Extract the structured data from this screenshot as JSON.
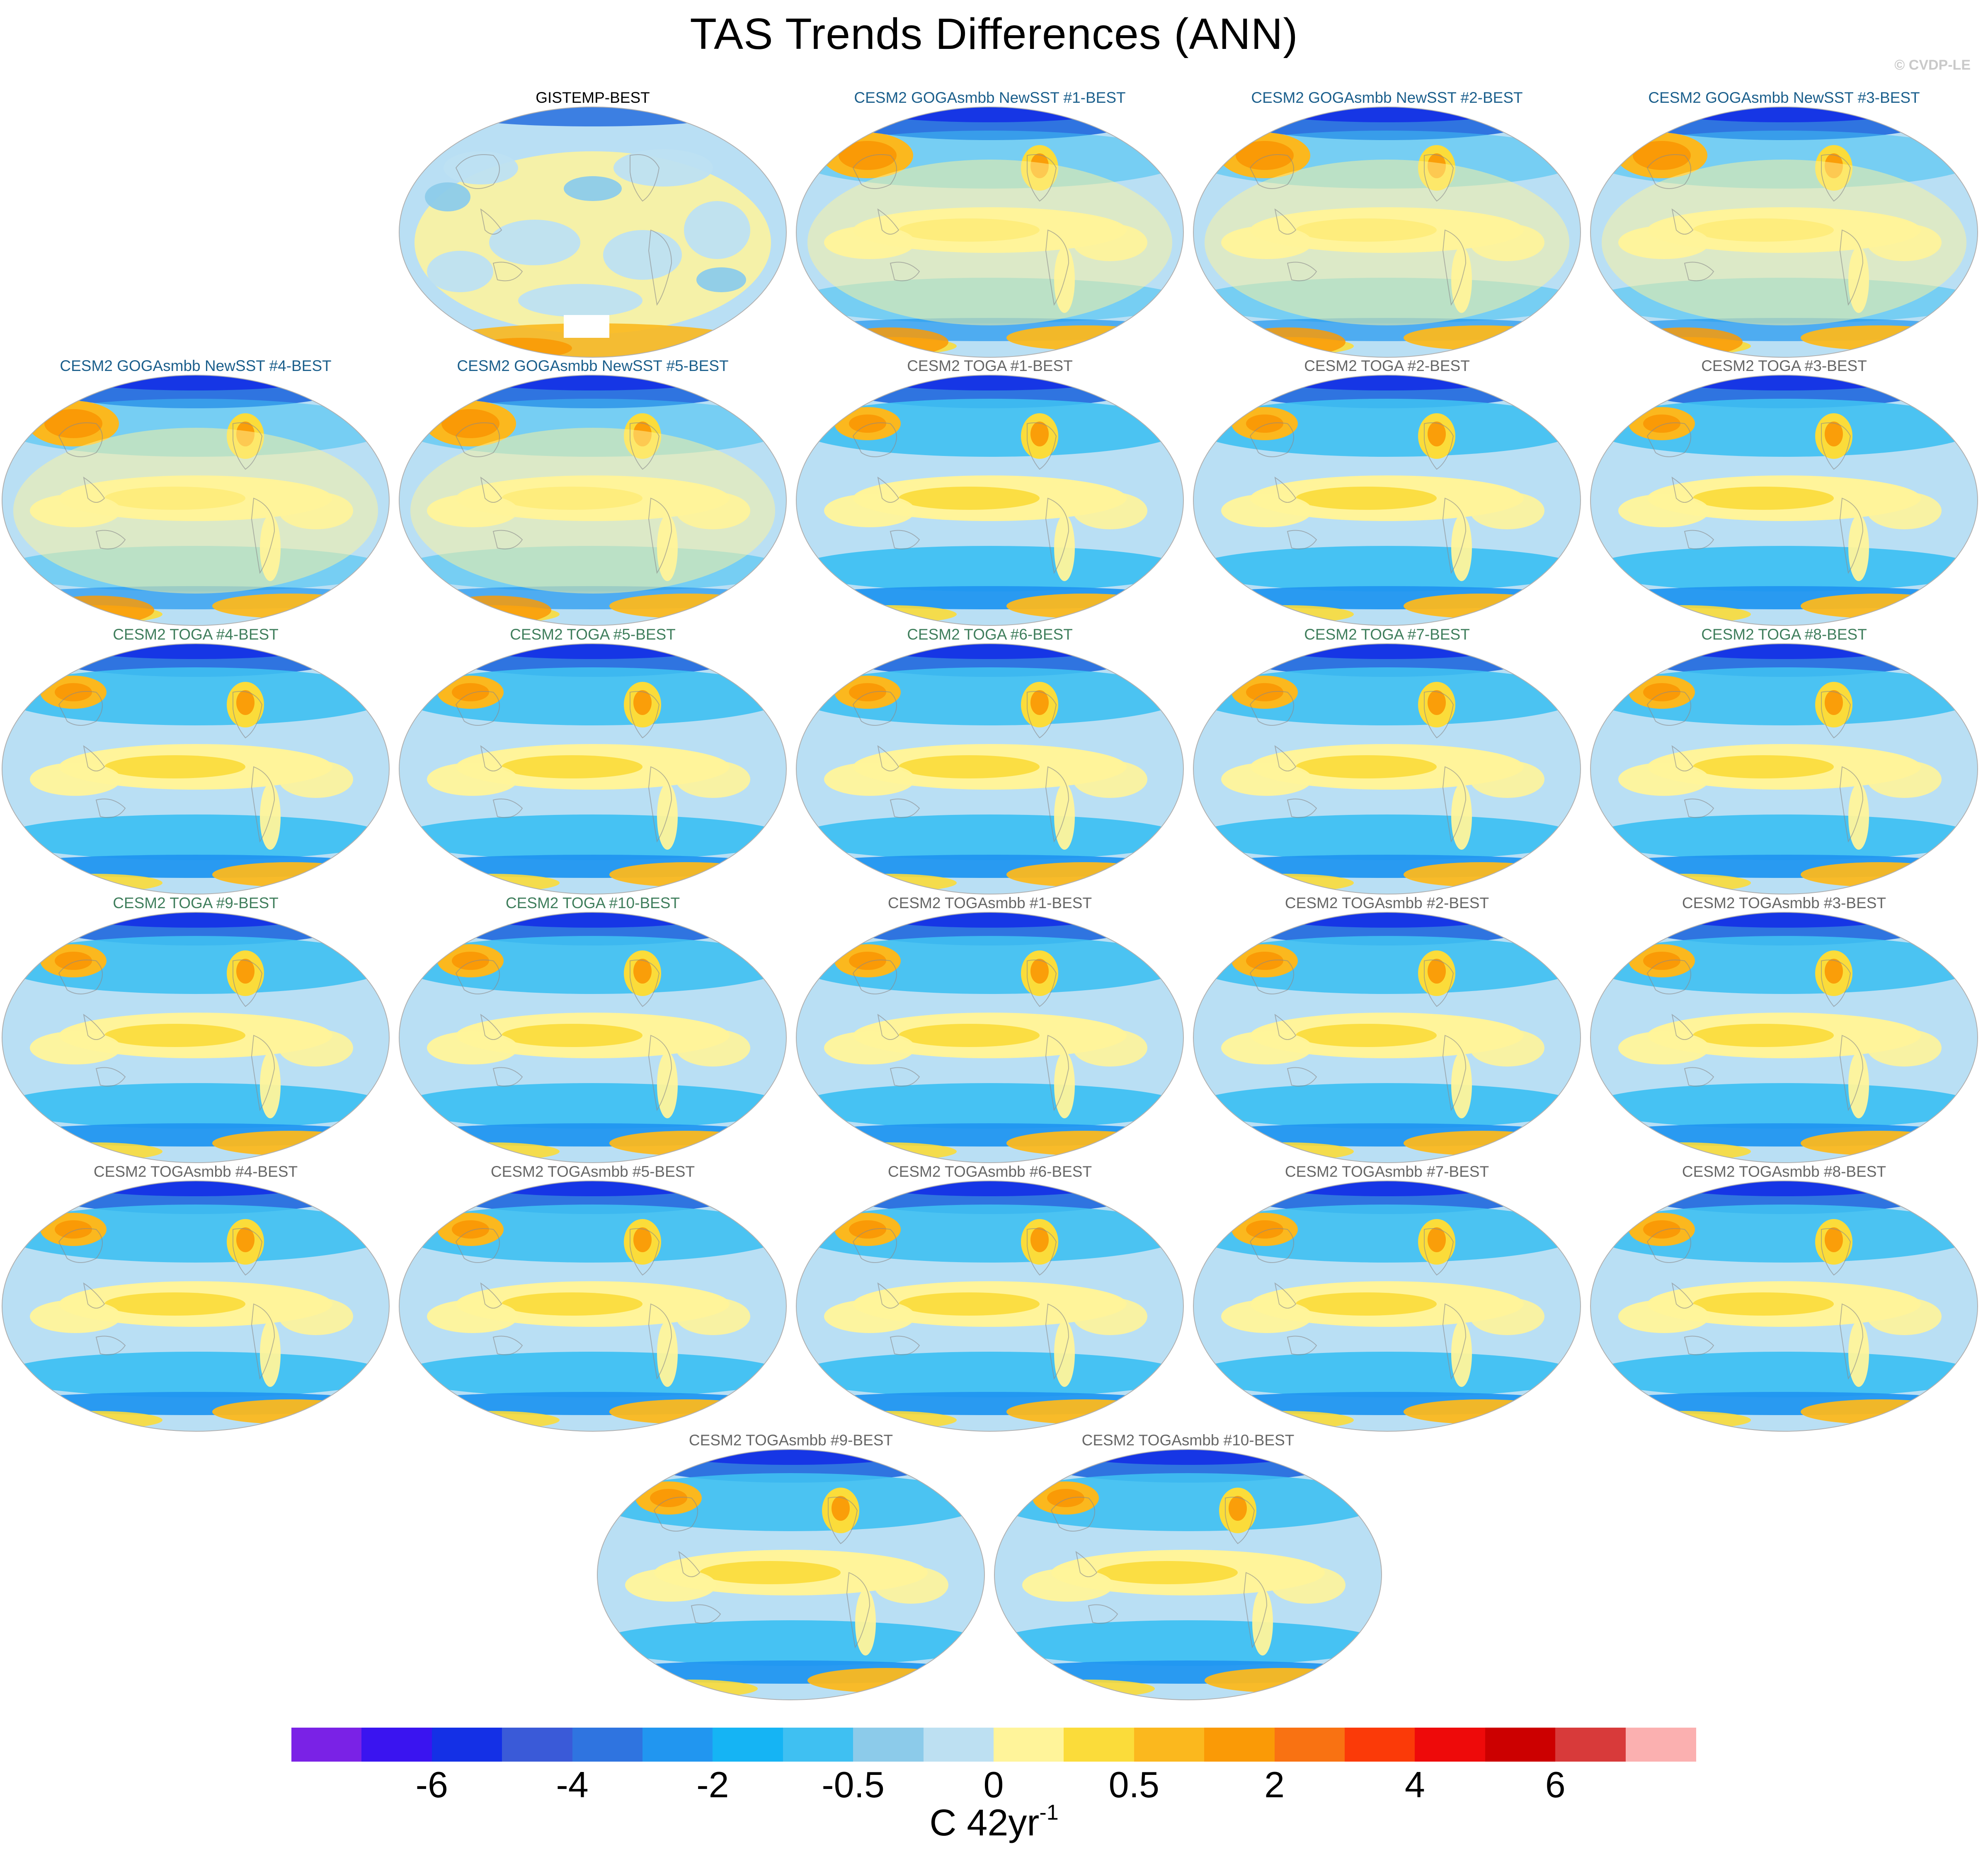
{
  "title": "TAS Trends Differences (ANN)",
  "credit": "© CVDP-LE",
  "colors": {
    "ocean": "#b9dff4",
    "land_edge": "#8a8a8a",
    "title_obs": "#000000",
    "title_newsst": "#1b5f8c",
    "title_toga": "#3f7e5c",
    "title_togasmbb": "#666666"
  },
  "panels": [
    {
      "label": "GISTEMP-BEST",
      "group": "obs"
    },
    {
      "label": "CESM2 GOGAsmbb NewSST #1-BEST",
      "group": "newsst"
    },
    {
      "label": "CESM2 GOGAsmbb NewSST #2-BEST",
      "group": "newsst"
    },
    {
      "label": "CESM2 GOGAsmbb NewSST #3-BEST",
      "group": "newsst"
    },
    {
      "label": "CESM2 GOGAsmbb NewSST #4-BEST",
      "group": "newsst"
    },
    {
      "label": "CESM2 GOGAsmbb NewSST #5-BEST",
      "group": "newsst"
    },
    {
      "label": "CESM2 TOGA #1-BEST",
      "group": "togasmbb"
    },
    {
      "label": "CESM2 TOGA #2-BEST",
      "group": "togasmbb"
    },
    {
      "label": "CESM2 TOGA #3-BEST",
      "group": "togasmbb"
    },
    {
      "label": "CESM2 TOGA #4-BEST",
      "group": "toga"
    },
    {
      "label": "CESM2 TOGA #5-BEST",
      "group": "toga"
    },
    {
      "label": "CESM2 TOGA #6-BEST",
      "group": "toga"
    },
    {
      "label": "CESM2 TOGA #7-BEST",
      "group": "toga"
    },
    {
      "label": "CESM2 TOGA #8-BEST",
      "group": "toga"
    },
    {
      "label": "CESM2 TOGA #9-BEST",
      "group": "toga"
    },
    {
      "label": "CESM2 TOGA #10-BEST",
      "group": "toga"
    },
    {
      "label": "CESM2 TOGAsmbb #1-BEST",
      "group": "togasmbb"
    },
    {
      "label": "CESM2 TOGAsmbb #2-BEST",
      "group": "togasmbb"
    },
    {
      "label": "CESM2 TOGAsmbb #3-BEST",
      "group": "togasmbb"
    },
    {
      "label": "CESM2 TOGAsmbb #4-BEST",
      "group": "togasmbb"
    },
    {
      "label": "CESM2 TOGAsmbb #5-BEST",
      "group": "togasmbb"
    },
    {
      "label": "CESM2 TOGAsmbb #6-BEST",
      "group": "togasmbb"
    },
    {
      "label": "CESM2 TOGAsmbb #7-BEST",
      "group": "togasmbb"
    },
    {
      "label": "CESM2 TOGAsmbb #8-BEST",
      "group": "togasmbb"
    },
    {
      "label": "CESM2 TOGAsmbb #9-BEST",
      "group": "togasmbb"
    },
    {
      "label": "CESM2 TOGAsmbb #10-BEST",
      "group": "togasmbb"
    }
  ],
  "colorbar": {
    "colors": [
      "#7a22e6",
      "#3a14f0",
      "#1430e6",
      "#3a5ad8",
      "#2f74e0",
      "#2196f0",
      "#15b4f4",
      "#3fc0f2",
      "#8ccbea",
      "#bde0f2",
      "#fff49a",
      "#fbdc3a",
      "#fbb81e",
      "#fa9a06",
      "#f97212",
      "#fb3a08",
      "#ee0a0a",
      "#cc0000",
      "#d83a3a",
      "#fbb0b0"
    ],
    "ticks": [
      "-6",
      "-4",
      "-2",
      "-0.5",
      "0",
      "0.5",
      "2",
      "4",
      "6"
    ],
    "units": "C 42yr",
    "units_exp": "-1"
  }
}
